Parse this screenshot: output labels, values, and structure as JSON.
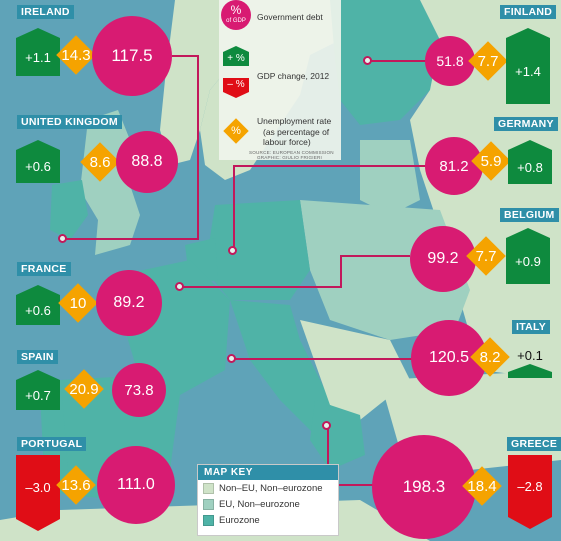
{
  "colors": {
    "sea": "#5fa3b8",
    "non_eu": "#cfe3c8",
    "eu_non_eurozone": "#9fd0c0",
    "eurozone": "#4fb3a7",
    "debt_circle": "#d81b72",
    "unemployment_diamond": "#f5a300",
    "gdp_up": "#0e8a3e",
    "gdp_down": "#e00d16",
    "label_bg": "#2f8fa8"
  },
  "legend": {
    "debt_symbol": "%",
    "debt_symbol_sub": "of GDP",
    "debt_label": "Government debt",
    "gdp_up_symbol": "+ %",
    "gdp_down_symbol": "– %",
    "gdp_label": "GDP change, 2012",
    "unemployment_symbol": "%",
    "unemployment_label_1": "Unemployment rate",
    "unemployment_label_2": "(as percentage of",
    "unemployment_label_3": "labour force)",
    "source_1": "SOURCE: EUROPEAN COMMISSION",
    "source_2": "GRAPHIC: GIULIO FRIGIERI"
  },
  "map_key": {
    "title": "MAP KEY",
    "items": [
      {
        "label": "Non–EU, Non–eurozone",
        "color": "#cfe3c8"
      },
      {
        "label": "EU, Non–eurozone",
        "color": "#9fd0c0"
      },
      {
        "label": "Eurozone",
        "color": "#4fb3a7"
      }
    ]
  },
  "countries": [
    {
      "name": "IRELAND",
      "debt": "117.5",
      "unemployment": "14.3",
      "gdp_change": "+1.1",
      "direction": "up"
    },
    {
      "name": "UNITED KINGDOM",
      "debt": "88.8",
      "unemployment": "8.6",
      "gdp_change": "+0.6",
      "direction": "up"
    },
    {
      "name": "FRANCE",
      "debt": "89.2",
      "unemployment": "10",
      "gdp_change": "+0.6",
      "direction": "up"
    },
    {
      "name": "SPAIN",
      "debt": "73.8",
      "unemployment": "20.9",
      "gdp_change": "+0.7",
      "direction": "up"
    },
    {
      "name": "PORTUGAL",
      "debt": "111.0",
      "unemployment": "13.6",
      "gdp_change": "–3.0",
      "direction": "down"
    },
    {
      "name": "FINLAND",
      "debt": "51.8",
      "unemployment": "7.7",
      "gdp_change": "+1.4",
      "direction": "up"
    },
    {
      "name": "GERMANY",
      "debt": "81.2",
      "unemployment": "5.9",
      "gdp_change": "+0.8",
      "direction": "up"
    },
    {
      "name": "BELGIUM",
      "debt": "99.2",
      "unemployment": "7.7",
      "gdp_change": "+0.9",
      "direction": "up"
    },
    {
      "name": "ITALY",
      "debt": "120.5",
      "unemployment": "8.2",
      "gdp_change": "+0.1",
      "direction": "flat"
    },
    {
      "name": "GREECE",
      "debt": "198.3",
      "unemployment": "18.4",
      "gdp_change": "–2.8",
      "direction": "down"
    }
  ]
}
